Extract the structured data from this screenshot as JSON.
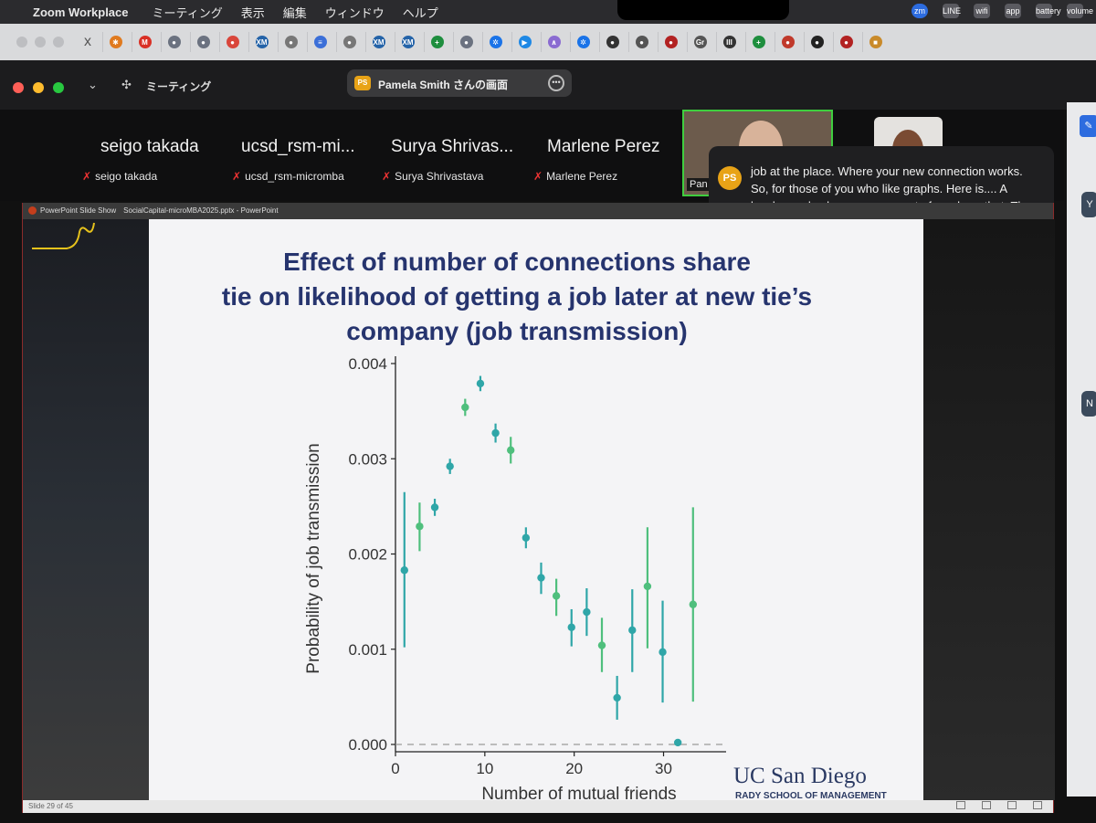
{
  "menubar": {
    "app_name": "Zoom Workplace",
    "items": [
      "ミーティング",
      "表示",
      "編集",
      "ウィンドウ",
      "ヘルプ"
    ],
    "status_icons": [
      "zm",
      "LINE",
      "wifi",
      "app",
      "battery",
      "volume"
    ]
  },
  "browser_tabs": [
    "x",
    "✱",
    "M",
    "●",
    "●",
    "●",
    "XM",
    "●",
    "≡",
    "●",
    "XM",
    "XM",
    "+",
    "●",
    "✲",
    "▶",
    "∧",
    "✲",
    "●",
    "●",
    "●",
    "Gr",
    "III",
    "+",
    "●",
    "●",
    "●",
    "■"
  ],
  "zoom": {
    "meeting_label": "ミーティング",
    "share_badge": "PS",
    "share_title": "Pamela Smith さんの画面",
    "more_button": "•••"
  },
  "participants": [
    {
      "display": "seigo takada",
      "name": "seigo takada"
    },
    {
      "display": "ucsd_rsm-mi...",
      "name": "ucsd_rsm-micromba"
    },
    {
      "display": "Surya Shrivas...",
      "name": "Surya Shrivastava"
    },
    {
      "display": "Marlene Perez",
      "name": "Marlene Perez"
    }
  ],
  "video_tile_label": "Pan",
  "caption": {
    "badge": "PS",
    "text": "job at the place. Where your new connection works. So, for those of you who like graphs. Here is.... A lovely graph where you can sort of see here that. The number of mutual"
  },
  "right_panel": {
    "b1": "✎",
    "b2": "Y",
    "b3": "N"
  },
  "ppt": {
    "window_title_left": "PowerPoint Slide Show",
    "window_title_file": "SocialCapital-microMBA2025.pptx - PowerPoint",
    "status_left": "Slide 29 of 45",
    "slide_title_lines": [
      "Effect of number of connections share",
      "tie on likelihood of getting a job later at new tie’s",
      "company (job transmission)"
    ],
    "logo_main": "UC San Diego",
    "logo_sub": "RADY SCHOOL OF MANAGEMENT"
  },
  "chart_data": {
    "type": "scatter",
    "xlabel": "Number of mutual friends",
    "ylabel": "Probability of job transmission",
    "xlim": [
      0,
      37
    ],
    "ylim": [
      0,
      0.004
    ],
    "xticks": [
      0,
      10,
      20,
      30
    ],
    "xtick_labels": [
      "0",
      "10",
      "20",
      "30"
    ],
    "yticks": [
      0,
      0.001,
      0.002,
      0.003,
      0.004
    ],
    "ytick_labels": [
      "0.000",
      "0.001",
      "0.002",
      "0.003",
      "0.004"
    ],
    "reference_line": 0,
    "points": [
      {
        "x": 1,
        "y": 0.00183,
        "lo": 0.00102,
        "hi": 0.00265
      },
      {
        "x": 2.7,
        "y": 0.00229,
        "lo": 0.00203,
        "hi": 0.00254
      },
      {
        "x": 4.4,
        "y": 0.00249,
        "lo": 0.0024,
        "hi": 0.00258
      },
      {
        "x": 6.1,
        "y": 0.00292,
        "lo": 0.00284,
        "hi": 0.003
      },
      {
        "x": 7.8,
        "y": 0.00354,
        "lo": 0.00345,
        "hi": 0.00363
      },
      {
        "x": 9.5,
        "y": 0.00379,
        "lo": 0.00371,
        "hi": 0.00387
      },
      {
        "x": 11.2,
        "y": 0.00327,
        "lo": 0.00317,
        "hi": 0.00337
      },
      {
        "x": 12.9,
        "y": 0.00309,
        "lo": 0.00295,
        "hi": 0.00323
      },
      {
        "x": 14.6,
        "y": 0.00217,
        "lo": 0.00206,
        "hi": 0.00228
      },
      {
        "x": 16.3,
        "y": 0.00175,
        "lo": 0.00158,
        "hi": 0.00191
      },
      {
        "x": 18,
        "y": 0.00156,
        "lo": 0.00135,
        "hi": 0.00174
      },
      {
        "x": 19.7,
        "y": 0.00123,
        "lo": 0.00103,
        "hi": 0.00142
      },
      {
        "x": 21.4,
        "y": 0.00139,
        "lo": 0.00114,
        "hi": 0.00164
      },
      {
        "x": 23.1,
        "y": 0.00104,
        "lo": 0.00076,
        "hi": 0.00133
      },
      {
        "x": 24.8,
        "y": 0.00049,
        "lo": 0.00026,
        "hi": 0.00072
      },
      {
        "x": 26.5,
        "y": 0.0012,
        "lo": 0.00076,
        "hi": 0.00163
      },
      {
        "x": 28.2,
        "y": 0.00166,
        "lo": 0.00101,
        "hi": 0.00228
      },
      {
        "x": 29.9,
        "y": 0.00097,
        "lo": 0.00044,
        "hi": 0.00151
      },
      {
        "x": 31.6,
        "y": 2e-05,
        "lo": 2e-05,
        "hi": 2e-05
      },
      {
        "x": 33.3,
        "y": 0.00147,
        "lo": 0.00045,
        "hi": 0.00249
      }
    ]
  }
}
